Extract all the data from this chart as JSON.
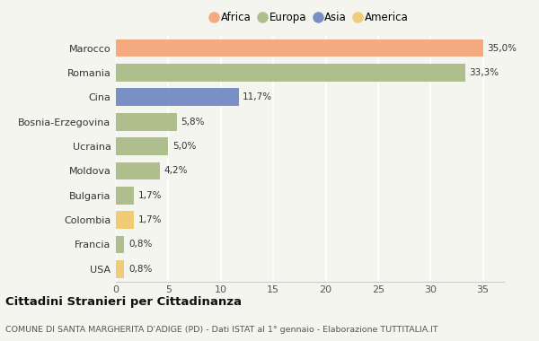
{
  "categories": [
    "Marocco",
    "Romania",
    "Cina",
    "Bosnia-Erzegovina",
    "Ucraina",
    "Moldova",
    "Bulgaria",
    "Colombia",
    "Francia",
    "USA"
  ],
  "values": [
    35.0,
    33.3,
    11.7,
    5.8,
    5.0,
    4.2,
    1.7,
    1.7,
    0.8,
    0.8
  ],
  "labels": [
    "35,0%",
    "33,3%",
    "11,7%",
    "5,8%",
    "5,0%",
    "4,2%",
    "1,7%",
    "1,7%",
    "0,8%",
    "0,8%"
  ],
  "colors": [
    "#F4A97F",
    "#AEBE8C",
    "#7B8FC7",
    "#AEBE8C",
    "#AEBE8C",
    "#AEBE8C",
    "#AEBE8C",
    "#F0CC76",
    "#AEBE8C",
    "#F0CC76"
  ],
  "legend_labels": [
    "Africa",
    "Europa",
    "Asia",
    "America"
  ],
  "legend_colors": [
    "#F4A97F",
    "#AEBE8C",
    "#7B8FC7",
    "#F0CC76"
  ],
  "title": "Cittadini Stranieri per Cittadinanza",
  "subtitle": "COMUNE DI SANTA MARGHERITA D'ADIGE (PD) - Dati ISTAT al 1° gennaio - Elaborazione TUTTITALIA.IT",
  "xlim": [
    0,
    37
  ],
  "xticks": [
    0,
    5,
    10,
    15,
    20,
    25,
    30,
    35
  ],
  "background_color": "#F5F5F0",
  "grid_color": "#FFFFFF",
  "bar_height": 0.72
}
